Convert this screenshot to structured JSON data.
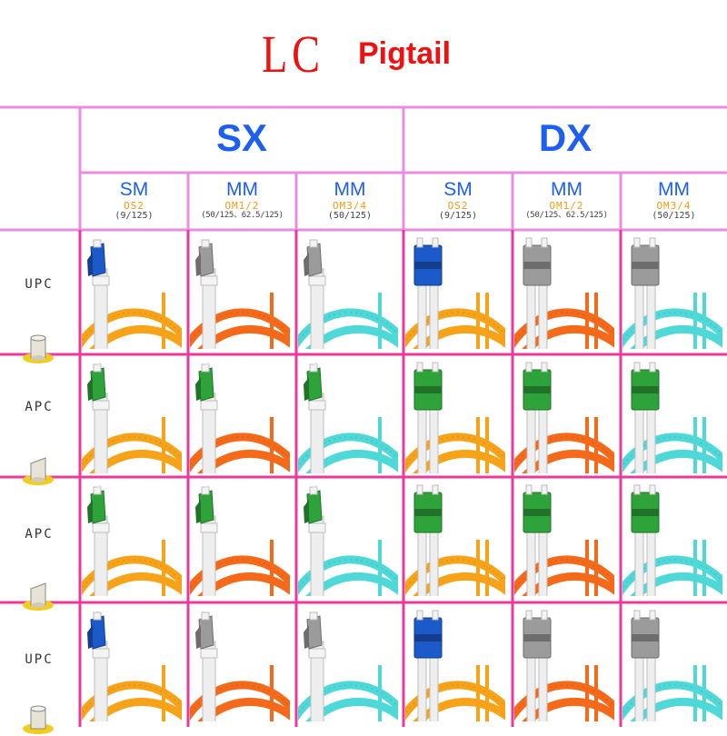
{
  "title": {
    "main": "LC",
    "sub": "Pigtail",
    "color": "#ee1111"
  },
  "colors": {
    "grid_upper": "#e88de0",
    "grid_lower": "#e83a9c",
    "header_blue": "#1d5ff0",
    "spec_orange": "#f59a12",
    "cable_yellow": "#f7a31a",
    "cable_orange": "#f46a1a",
    "cable_aqua": "#4fd8d8",
    "conn_blue": "#1c59c9",
    "conn_green": "#2ea33a",
    "conn_grey": "#9b9b9b"
  },
  "groups": [
    {
      "label": "SX",
      "type": "simplex"
    },
    {
      "label": "DX",
      "type": "duplex"
    }
  ],
  "columns": [
    {
      "type": "SM",
      "om": "OS2",
      "size": "(9/125)",
      "cable": "yellow",
      "group": "SX"
    },
    {
      "type": "MM",
      "om": "OM1/2",
      "size": "(50/125、62.5/125)",
      "cable": "orange",
      "group": "SX"
    },
    {
      "type": "MM",
      "om": "OM3/4",
      "size": "(50/125)",
      "cable": "aqua",
      "group": "SX"
    },
    {
      "type": "SM",
      "om": "OS2",
      "size": "(9/125)",
      "cable": "yellow",
      "group": "DX"
    },
    {
      "type": "MM",
      "om": "OM1/2",
      "size": "(50/125、62.5/125)",
      "cable": "orange",
      "group": "DX"
    },
    {
      "type": "MM",
      "om": "OM3/4",
      "size": "(50/125)",
      "cable": "aqua",
      "group": "DX"
    }
  ],
  "rows": [
    {
      "label": "UPC",
      "ferrule": "flat",
      "connector_colors": [
        "blue",
        "grey",
        "grey",
        "blue",
        "grey",
        "grey"
      ]
    },
    {
      "label": "APC",
      "ferrule": "angled",
      "connector_colors": [
        "green",
        "green",
        "green",
        "green",
        "green",
        "green"
      ]
    },
    {
      "label": "APC",
      "ferrule": "angled",
      "connector_colors": [
        "green",
        "green",
        "green",
        "green",
        "green",
        "green"
      ]
    },
    {
      "label": "UPC",
      "ferrule": "flat",
      "connector_colors": [
        "blue",
        "grey",
        "grey",
        "blue",
        "grey",
        "grey"
      ]
    }
  ]
}
